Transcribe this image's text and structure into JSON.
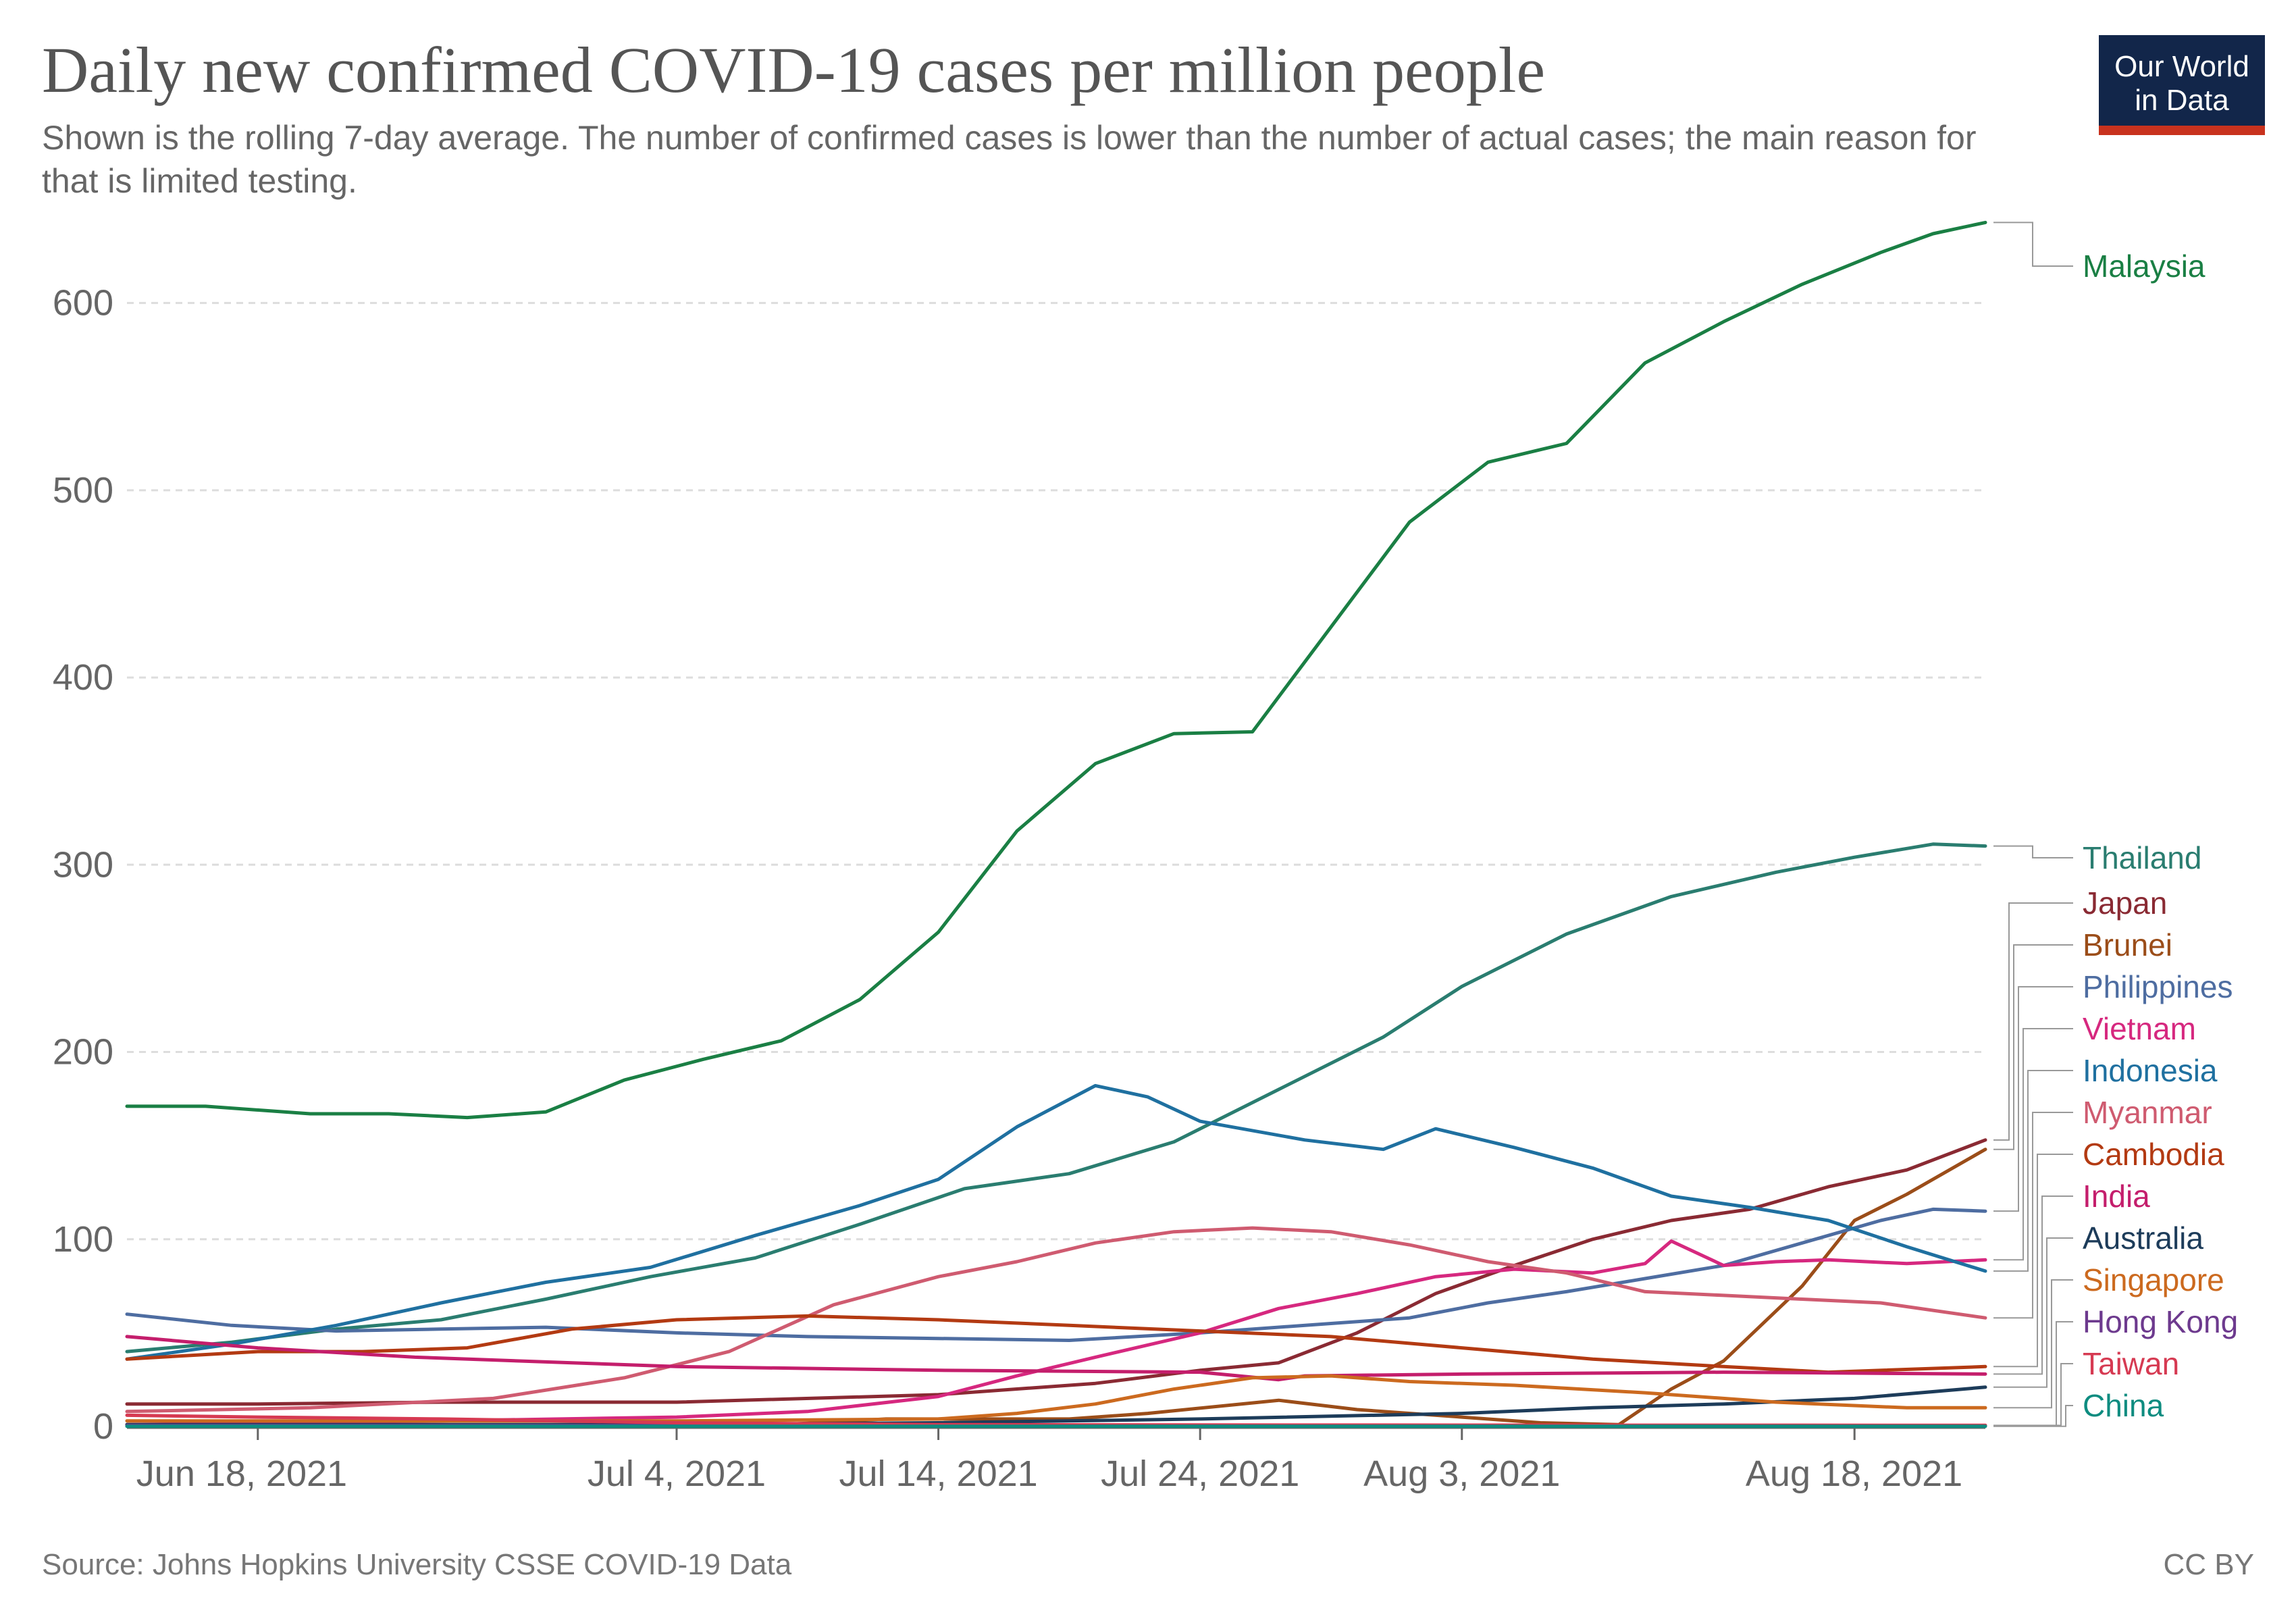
{
  "header": {
    "title": "Daily new confirmed COVID-19 cases per million people",
    "subtitle": "Shown is the rolling 7-day average. The number of confirmed cases is lower than the number of actual cases; the main reason for that is limited testing."
  },
  "logo": {
    "line1": "Our World",
    "line2": "in Data"
  },
  "footer": {
    "source": "Source: Johns Hopkins University CSSE COVID-19 Data",
    "license": "CC BY"
  },
  "colors": {
    "grid": "#dddddd",
    "axis": "#666666",
    "logo_bg": "#12264a",
    "logo_accent": "#c8321e"
  },
  "chart_data": {
    "type": "line",
    "title": "Daily new confirmed COVID-19 cases per million people",
    "xlabel": "",
    "ylabel": "",
    "x_range": [
      "2021-06-13",
      "2021-08-23"
    ],
    "ylim": [
      0,
      650
    ],
    "grid": true,
    "legend_placement": "right",
    "x_ticks": [
      {
        "date": "2021-06-18",
        "label": "Jun 18, 2021"
      },
      {
        "date": "2021-07-04",
        "label": "Jul 4, 2021"
      },
      {
        "date": "2021-07-14",
        "label": "Jul 14, 2021"
      },
      {
        "date": "2021-07-24",
        "label": "Jul 24, 2021"
      },
      {
        "date": "2021-08-03",
        "label": "Aug 3, 2021"
      },
      {
        "date": "2021-08-18",
        "label": "Aug 18, 2021"
      }
    ],
    "y_ticks": [
      0,
      100,
      200,
      300,
      400,
      500,
      600
    ],
    "series": [
      {
        "name": "Malaysia",
        "color": "#1a7f44",
        "points": [
          [
            "2021-06-13",
            171
          ],
          [
            "2021-06-16",
            171
          ],
          [
            "2021-06-20",
            167
          ],
          [
            "2021-06-23",
            167
          ],
          [
            "2021-06-26",
            165
          ],
          [
            "2021-06-29",
            168
          ],
          [
            "2021-07-02",
            185
          ],
          [
            "2021-07-05",
            196
          ],
          [
            "2021-07-08",
            206
          ],
          [
            "2021-07-11",
            228
          ],
          [
            "2021-07-14",
            264
          ],
          [
            "2021-07-17",
            318
          ],
          [
            "2021-07-20",
            354
          ],
          [
            "2021-07-23",
            370
          ],
          [
            "2021-07-26",
            371
          ],
          [
            "2021-07-29",
            427
          ],
          [
            "2021-08-01",
            483
          ],
          [
            "2021-08-04",
            515
          ],
          [
            "2021-08-07",
            525
          ],
          [
            "2021-08-10",
            568
          ],
          [
            "2021-08-13",
            590
          ],
          [
            "2021-08-16",
            610
          ],
          [
            "2021-08-19",
            627
          ],
          [
            "2021-08-21",
            637
          ],
          [
            "2021-08-23",
            643
          ]
        ]
      },
      {
        "name": "Thailand",
        "color": "#2a7d70",
        "points": [
          [
            "2021-06-13",
            40
          ],
          [
            "2021-06-17",
            45
          ],
          [
            "2021-06-21",
            52
          ],
          [
            "2021-06-25",
            57
          ],
          [
            "2021-06-29",
            68
          ],
          [
            "2021-07-03",
            80
          ],
          [
            "2021-07-07",
            90
          ],
          [
            "2021-07-11",
            108
          ],
          [
            "2021-07-15",
            127
          ],
          [
            "2021-07-19",
            135
          ],
          [
            "2021-07-23",
            152
          ],
          [
            "2021-07-27",
            180
          ],
          [
            "2021-07-31",
            208
          ],
          [
            "2021-08-03",
            235
          ],
          [
            "2021-08-07",
            263
          ],
          [
            "2021-08-11",
            283
          ],
          [
            "2021-08-15",
            296
          ],
          [
            "2021-08-18",
            304
          ],
          [
            "2021-08-21",
            311
          ],
          [
            "2021-08-23",
            310
          ]
        ]
      },
      {
        "name": "Japan",
        "color": "#8a2a33",
        "points": [
          [
            "2021-06-13",
            12
          ],
          [
            "2021-06-18",
            12
          ],
          [
            "2021-06-25",
            13
          ],
          [
            "2021-07-04",
            13
          ],
          [
            "2021-07-14",
            17
          ],
          [
            "2021-07-20",
            23
          ],
          [
            "2021-07-24",
            30
          ],
          [
            "2021-07-27",
            34
          ],
          [
            "2021-07-30",
            50
          ],
          [
            "2021-08-02",
            71
          ],
          [
            "2021-08-05",
            86
          ],
          [
            "2021-08-08",
            100
          ],
          [
            "2021-08-11",
            110
          ],
          [
            "2021-08-14",
            116
          ],
          [
            "2021-08-17",
            128
          ],
          [
            "2021-08-20",
            137
          ],
          [
            "2021-08-23",
            153
          ]
        ]
      },
      {
        "name": "Brunei",
        "color": "#9b4d19",
        "points": [
          [
            "2021-06-13",
            1
          ],
          [
            "2021-07-08",
            1
          ],
          [
            "2021-07-12",
            4
          ],
          [
            "2021-07-19",
            4
          ],
          [
            "2021-07-22",
            7
          ],
          [
            "2021-07-27",
            14
          ],
          [
            "2021-07-30",
            9
          ],
          [
            "2021-08-06",
            2
          ],
          [
            "2021-08-09",
            1
          ],
          [
            "2021-08-11",
            20
          ],
          [
            "2021-08-13",
            35
          ],
          [
            "2021-08-16",
            75
          ],
          [
            "2021-08-18",
            110
          ],
          [
            "2021-08-20",
            124
          ],
          [
            "2021-08-23",
            148
          ]
        ]
      },
      {
        "name": "Philippines",
        "color": "#4e6da1",
        "points": [
          [
            "2021-06-13",
            60
          ],
          [
            "2021-06-17",
            54
          ],
          [
            "2021-06-21",
            51
          ],
          [
            "2021-06-25",
            52
          ],
          [
            "2021-06-29",
            53
          ],
          [
            "2021-07-04",
            50
          ],
          [
            "2021-07-09",
            48
          ],
          [
            "2021-07-14",
            47
          ],
          [
            "2021-07-19",
            46
          ],
          [
            "2021-07-24",
            50
          ],
          [
            "2021-07-29",
            55
          ],
          [
            "2021-08-01",
            58
          ],
          [
            "2021-08-04",
            66
          ],
          [
            "2021-08-07",
            72
          ],
          [
            "2021-08-10",
            79
          ],
          [
            "2021-08-13",
            86
          ],
          [
            "2021-08-16",
            98
          ],
          [
            "2021-08-19",
            110
          ],
          [
            "2021-08-21",
            116
          ],
          [
            "2021-08-23",
            115
          ]
        ]
      },
      {
        "name": "Vietnam",
        "color": "#d6287f",
        "points": [
          [
            "2021-06-13",
            1
          ],
          [
            "2021-06-25",
            3
          ],
          [
            "2021-07-04",
            5
          ],
          [
            "2021-07-09",
            8
          ],
          [
            "2021-07-14",
            16
          ],
          [
            "2021-07-17",
            27
          ],
          [
            "2021-07-20",
            37
          ],
          [
            "2021-07-24",
            50
          ],
          [
            "2021-07-27",
            63
          ],
          [
            "2021-07-30",
            71
          ],
          [
            "2021-08-02",
            80
          ],
          [
            "2021-08-05",
            84
          ],
          [
            "2021-08-08",
            82
          ],
          [
            "2021-08-10",
            87
          ],
          [
            "2021-08-11",
            99
          ],
          [
            "2021-08-13",
            86
          ],
          [
            "2021-08-15",
            88
          ],
          [
            "2021-08-17",
            89
          ],
          [
            "2021-08-20",
            87
          ],
          [
            "2021-08-23",
            89
          ]
        ]
      },
      {
        "name": "Indonesia",
        "color": "#1f70a0",
        "points": [
          [
            "2021-06-13",
            36
          ],
          [
            "2021-06-17",
            44
          ],
          [
            "2021-06-21",
            54
          ],
          [
            "2021-06-25",
            66
          ],
          [
            "2021-06-29",
            77
          ],
          [
            "2021-07-03",
            85
          ],
          [
            "2021-07-07",
            102
          ],
          [
            "2021-07-11",
            118
          ],
          [
            "2021-07-14",
            132
          ],
          [
            "2021-07-17",
            160
          ],
          [
            "2021-07-20",
            182
          ],
          [
            "2021-07-22",
            176
          ],
          [
            "2021-07-24",
            163
          ],
          [
            "2021-07-28",
            153
          ],
          [
            "2021-07-31",
            148
          ],
          [
            "2021-08-02",
            159
          ],
          [
            "2021-08-05",
            149
          ],
          [
            "2021-08-08",
            138
          ],
          [
            "2021-08-11",
            123
          ],
          [
            "2021-08-14",
            117
          ],
          [
            "2021-08-17",
            110
          ],
          [
            "2021-08-20",
            96
          ],
          [
            "2021-08-23",
            83
          ]
        ]
      },
      {
        "name": "Myanmar",
        "color": "#cf5b70",
        "points": [
          [
            "2021-06-13",
            8
          ],
          [
            "2021-06-20",
            10
          ],
          [
            "2021-06-27",
            15
          ],
          [
            "2021-07-02",
            26
          ],
          [
            "2021-07-06",
            40
          ],
          [
            "2021-07-10",
            65
          ],
          [
            "2021-07-14",
            80
          ],
          [
            "2021-07-17",
            88
          ],
          [
            "2021-07-20",
            98
          ],
          [
            "2021-07-23",
            104
          ],
          [
            "2021-07-26",
            106
          ],
          [
            "2021-07-29",
            104
          ],
          [
            "2021-08-01",
            97
          ],
          [
            "2021-08-04",
            88
          ],
          [
            "2021-08-07",
            82
          ],
          [
            "2021-08-10",
            72
          ],
          [
            "2021-08-13",
            70
          ],
          [
            "2021-08-16",
            68
          ],
          [
            "2021-08-19",
            66
          ],
          [
            "2021-08-23",
            58
          ]
        ]
      },
      {
        "name": "Cambodia",
        "color": "#b33a12",
        "points": [
          [
            "2021-06-13",
            36
          ],
          [
            "2021-06-18",
            40
          ],
          [
            "2021-06-22",
            40
          ],
          [
            "2021-06-26",
            42
          ],
          [
            "2021-06-30",
            52
          ],
          [
            "2021-07-04",
            57
          ],
          [
            "2021-07-09",
            59
          ],
          [
            "2021-07-14",
            57
          ],
          [
            "2021-07-19",
            54
          ],
          [
            "2021-07-24",
            51
          ],
          [
            "2021-07-29",
            48
          ],
          [
            "2021-08-03",
            42
          ],
          [
            "2021-08-08",
            36
          ],
          [
            "2021-08-13",
            32
          ],
          [
            "2021-08-17",
            29
          ],
          [
            "2021-08-23",
            32
          ]
        ]
      },
      {
        "name": "India",
        "color": "#c41e6c",
        "points": [
          [
            "2021-06-13",
            48
          ],
          [
            "2021-06-18",
            42
          ],
          [
            "2021-06-24",
            37
          ],
          [
            "2021-07-04",
            32
          ],
          [
            "2021-07-14",
            30
          ],
          [
            "2021-07-24",
            29
          ],
          [
            "2021-07-27",
            25
          ],
          [
            "2021-07-28",
            27
          ],
          [
            "2021-08-03",
            28
          ],
          [
            "2021-08-13",
            29
          ],
          [
            "2021-08-23",
            28
          ]
        ]
      },
      {
        "name": "Australia",
        "color": "#1d3c5a",
        "points": [
          [
            "2021-06-13",
            1
          ],
          [
            "2021-06-25",
            1
          ],
          [
            "2021-07-04",
            1
          ],
          [
            "2021-07-14",
            2
          ],
          [
            "2021-07-24",
            4
          ],
          [
            "2021-08-03",
            7
          ],
          [
            "2021-08-08",
            10
          ],
          [
            "2021-08-13",
            12
          ],
          [
            "2021-08-18",
            15
          ],
          [
            "2021-08-23",
            21
          ]
        ]
      },
      {
        "name": "Singapore",
        "color": "#cc6a1f",
        "points": [
          [
            "2021-06-13",
            3
          ],
          [
            "2021-06-25",
            3
          ],
          [
            "2021-07-04",
            3
          ],
          [
            "2021-07-14",
            4
          ],
          [
            "2021-07-17",
            7
          ],
          [
            "2021-07-20",
            12
          ],
          [
            "2021-07-23",
            20
          ],
          [
            "2021-07-26",
            26
          ],
          [
            "2021-07-29",
            27
          ],
          [
            "2021-08-01",
            24
          ],
          [
            "2021-08-05",
            22
          ],
          [
            "2021-08-10",
            18
          ],
          [
            "2021-08-15",
            13
          ],
          [
            "2021-08-20",
            10
          ],
          [
            "2021-08-23",
            10
          ]
        ]
      },
      {
        "name": "Hong Kong",
        "color": "#6d3a8e",
        "points": [
          [
            "2021-06-13",
            0.5
          ],
          [
            "2021-08-23",
            0.5
          ]
        ]
      },
      {
        "name": "Taiwan",
        "color": "#d63a52",
        "points": [
          [
            "2021-06-13",
            6
          ],
          [
            "2021-06-18",
            5
          ],
          [
            "2021-06-25",
            4
          ],
          [
            "2021-07-04",
            2
          ],
          [
            "2021-07-14",
            1
          ],
          [
            "2021-07-24",
            0.8
          ],
          [
            "2021-08-23",
            0.6
          ]
        ]
      },
      {
        "name": "China",
        "color": "#0e8c80",
        "points": [
          [
            "2021-06-13",
            0.1
          ],
          [
            "2021-08-23",
            0.1
          ]
        ]
      }
    ]
  }
}
